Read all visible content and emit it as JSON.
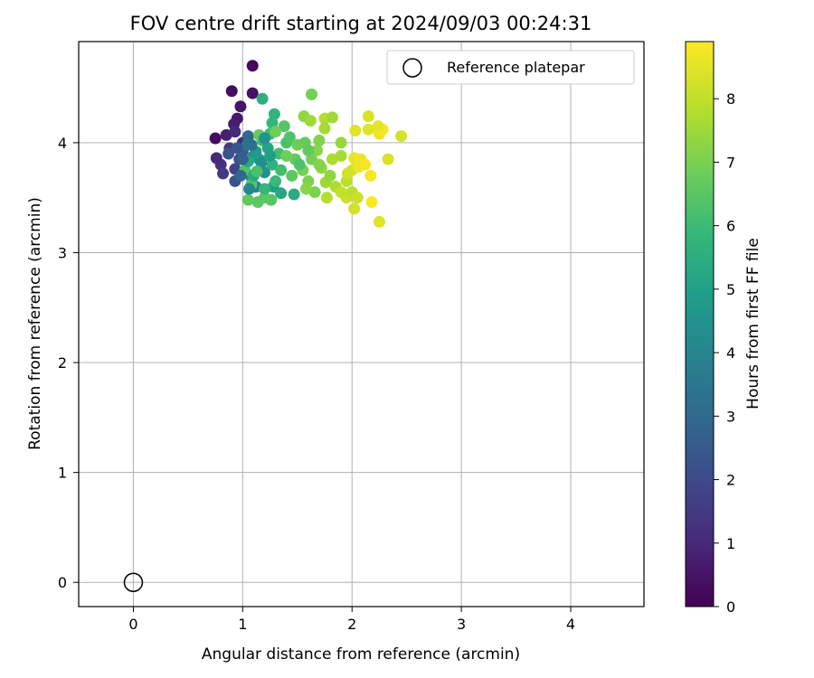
{
  "chart_data": {
    "type": "scatter",
    "title": "FOV centre drift starting at 2024/09/03 00:24:31",
    "xlabel": "Angular distance from reference (arcmin)",
    "ylabel": "Rotation from reference (arcmin)",
    "xlim": [
      -0.5,
      4.67
    ],
    "ylim": [
      -0.22,
      4.92
    ],
    "xticks": [
      0,
      1,
      2,
      3,
      4
    ],
    "yticks": [
      0,
      1,
      2,
      3,
      4
    ],
    "grid": true,
    "legend": {
      "placement": "top-right",
      "entries": [
        "Reference platepar"
      ]
    },
    "colorbar": {
      "label": "Hours from first FF file",
      "colormap": "viridis",
      "range": [
        0,
        8.9
      ],
      "ticks": [
        0,
        1,
        2,
        3,
        4,
        5,
        6,
        7,
        8
      ]
    },
    "reference_point": {
      "x": 0,
      "y": 0
    },
    "series": [
      {
        "name": "Reference platepar",
        "points": [
          [
            0,
            0
          ]
        ]
      },
      {
        "points": [
          [
            1.09,
            4.7,
            0.2
          ],
          [
            0.9,
            4.47,
            0.3
          ],
          [
            1.09,
            4.45,
            0.4
          ],
          [
            0.98,
            4.33,
            0.5
          ],
          [
            0.95,
            4.22,
            0.6
          ],
          [
            0.92,
            4.17,
            0.7
          ],
          [
            0.75,
            4.04,
            0.3
          ],
          [
            0.85,
            4.07,
            0.8
          ],
          [
            0.93,
            4.1,
            1.0
          ],
          [
            1.0,
            4.0,
            1.2
          ],
          [
            0.88,
            3.95,
            1.5
          ],
          [
            0.8,
            3.8,
            1.3
          ],
          [
            0.76,
            3.86,
            1.0
          ],
          [
            0.82,
            3.72,
            1.5
          ],
          [
            0.93,
            3.76,
            1.8
          ],
          [
            0.93,
            3.65,
            2.2
          ],
          [
            0.97,
            3.85,
            2.0
          ],
          [
            0.87,
            3.9,
            2.3
          ],
          [
            1.0,
            3.92,
            2.6
          ],
          [
            1.05,
            4.06,
            3.0
          ],
          [
            1.04,
            3.98,
            3.5
          ],
          [
            1.1,
            3.88,
            4.0
          ],
          [
            1.07,
            3.7,
            4.2
          ],
          [
            1.12,
            3.6,
            3.8
          ],
          [
            1.2,
            3.73,
            4.5
          ],
          [
            1.28,
            3.6,
            5.0
          ],
          [
            1.35,
            3.54,
            5.3
          ],
          [
            1.47,
            3.53,
            5.5
          ],
          [
            1.18,
            4.4,
            5.6
          ],
          [
            1.29,
            4.26,
            5.8
          ],
          [
            1.27,
            4.18,
            5.9
          ],
          [
            1.25,
            4.08,
            6.0
          ],
          [
            1.18,
            4.02,
            6.1
          ],
          [
            1.23,
            3.95,
            5.2
          ],
          [
            1.15,
            3.85,
            5.0
          ],
          [
            1.27,
            3.8,
            5.7
          ],
          [
            1.33,
            3.9,
            6.2
          ],
          [
            1.4,
            4.0,
            6.3
          ],
          [
            1.43,
            4.05,
            6.4
          ],
          [
            1.38,
            4.15,
            6.5
          ],
          [
            1.26,
            3.48,
            6.5
          ],
          [
            1.2,
            3.5,
            6.6
          ],
          [
            1.14,
            3.46,
            6.6
          ],
          [
            1.05,
            3.48,
            6.7
          ],
          [
            1.08,
            3.62,
            6.5
          ],
          [
            1.02,
            3.75,
            6.4
          ],
          [
            1.15,
            4.07,
            6.8
          ],
          [
            1.3,
            4.1,
            6.9
          ],
          [
            1.5,
            3.98,
            6.9
          ],
          [
            1.55,
            3.75,
            7.0
          ],
          [
            1.6,
            3.65,
            7.1
          ],
          [
            1.63,
            3.85,
            7.0
          ],
          [
            1.57,
            4.0,
            6.8
          ],
          [
            1.63,
            4.44,
            7.0
          ],
          [
            1.56,
            4.24,
            7.4
          ],
          [
            1.62,
            4.2,
            7.6
          ],
          [
            1.75,
            4.22,
            7.9
          ],
          [
            1.82,
            4.23,
            7.6
          ],
          [
            1.7,
            4.02,
            7.2
          ],
          [
            1.68,
            3.93,
            7.3
          ],
          [
            1.72,
            3.77,
            7.5
          ],
          [
            1.76,
            3.64,
            7.6
          ],
          [
            1.82,
            3.85,
            7.8
          ],
          [
            1.77,
            3.5,
            7.9
          ],
          [
            1.9,
            4.0,
            7.5
          ],
          [
            1.9,
            3.88,
            7.7
          ],
          [
            1.95,
            3.65,
            8.0
          ],
          [
            1.95,
            3.5,
            8.2
          ],
          [
            2.0,
            3.55,
            8.0
          ],
          [
            2.02,
            3.4,
            8.3
          ],
          [
            2.05,
            3.5,
            8.2
          ],
          [
            2.0,
            3.75,
            8.4
          ],
          [
            2.02,
            3.86,
            8.6
          ],
          [
            2.08,
            3.85,
            8.7
          ],
          [
            2.06,
            3.78,
            8.7
          ],
          [
            2.12,
            3.8,
            8.8
          ],
          [
            2.17,
            3.7,
            8.8
          ],
          [
            2.18,
            3.46,
            8.9
          ],
          [
            2.25,
            3.28,
            8.5
          ],
          [
            2.15,
            4.24,
            8.4
          ],
          [
            2.15,
            4.12,
            8.5
          ],
          [
            2.25,
            4.08,
            8.7
          ],
          [
            2.28,
            4.12,
            8.8
          ],
          [
            2.24,
            4.15,
            8.6
          ],
          [
            2.03,
            4.11,
            8.5
          ],
          [
            2.33,
            3.85,
            8.4
          ],
          [
            2.45,
            4.06,
            8.3
          ],
          [
            1.75,
            4.13,
            7.7
          ],
          [
            1.66,
            3.55,
            7.1
          ],
          [
            1.58,
            3.58,
            7.3
          ],
          [
            1.45,
            3.7,
            6.6
          ],
          [
            1.48,
            3.85,
            6.7
          ],
          [
            1.35,
            3.75,
            6.2
          ],
          [
            1.3,
            3.65,
            6.0
          ],
          [
            1.2,
            3.58,
            5.9
          ],
          [
            1.1,
            3.7,
            5.5
          ],
          [
            1.05,
            3.83,
            5.3
          ],
          [
            1.12,
            3.92,
            4.8
          ],
          [
            1.2,
            4.04,
            4.6
          ],
          [
            1.17,
            3.82,
            4.5
          ],
          [
            1.25,
            3.88,
            5.0
          ],
          [
            1.06,
            3.58,
            4.1
          ],
          [
            0.98,
            3.7,
            2.9
          ],
          [
            0.95,
            3.95,
            2.4
          ],
          [
            1.0,
            3.85,
            2.7
          ],
          [
            1.08,
            3.98,
            3.2
          ],
          [
            1.13,
            3.74,
            6.3
          ],
          [
            1.4,
            3.88,
            6.9
          ],
          [
            1.52,
            3.8,
            6.4
          ],
          [
            1.6,
            3.93,
            6.7
          ],
          [
            1.7,
            3.8,
            7.2
          ],
          [
            1.8,
            3.7,
            7.4
          ],
          [
            1.85,
            3.6,
            7.8
          ],
          [
            1.9,
            3.55,
            8.1
          ],
          [
            1.96,
            3.72,
            8.3
          ]
        ]
      }
    ]
  }
}
